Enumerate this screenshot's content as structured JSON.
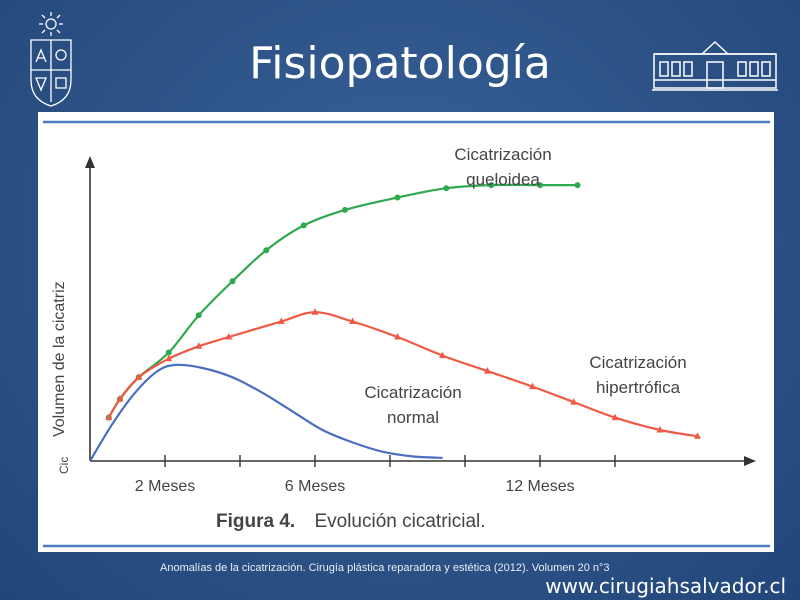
{
  "slide": {
    "title": "Fisiopatología",
    "source": "Anomalías de la cicatrización. Cirugía plástica reparadora y estética (2012). Volumen  20 n°3",
    "website": "www.cirugiahsalvador.cl"
  },
  "chart_data": {
    "type": "line",
    "caption_prefix": "Figura 4.",
    "caption_text": "Evolución cicatricial.",
    "ylabel": "Volumen de la cicatriz",
    "origin_label": "Cic",
    "x_ticks": [
      {
        "x": 2,
        "label": "2 Meses"
      },
      {
        "x": 4,
        "label": ""
      },
      {
        "x": 6,
        "label": "6 Meses"
      },
      {
        "x": 8,
        "label": ""
      },
      {
        "x": 10,
        "label": ""
      },
      {
        "x": 12,
        "label": "12 Meses"
      },
      {
        "x": 14,
        "label": ""
      }
    ],
    "xlim": [
      0,
      17.5
    ],
    "ylim": [
      0,
      100
    ],
    "series": [
      {
        "name": "Cicatrización queloidea",
        "label_lines": [
          "Cicatrización",
          "queloidea"
        ],
        "color": "#2fa84f",
        "x": [
          0.5,
          0.8,
          1.3,
          2.1,
          2.9,
          3.8,
          4.7,
          5.7,
          6.8,
          8.2,
          9.5,
          10.7,
          12.0,
          13.0
        ],
        "y": [
          14,
          20,
          27,
          35,
          47,
          58,
          68,
          76,
          81,
          85,
          88,
          89,
          89,
          89
        ]
      },
      {
        "name": "Cicatrización hipertrófica",
        "label_lines": [
          "Cicatrización",
          "hipertrófica"
        ],
        "color": "#ef5a45",
        "x": [
          0.5,
          0.8,
          1.3,
          2.1,
          2.9,
          3.7,
          5.1,
          6.0,
          7.0,
          8.2,
          9.4,
          10.6,
          11.8,
          12.9,
          14.0,
          15.2,
          16.2
        ],
        "y": [
          14,
          20,
          27,
          33,
          37,
          40,
          45,
          48,
          45,
          40,
          34,
          29,
          24,
          19,
          14,
          10,
          8
        ]
      },
      {
        "name": "Cicatrización normal",
        "label_lines": [
          "Cicatrización",
          "normal"
        ],
        "color": "#4a6fc0",
        "x": [
          0.0,
          0.6,
          1.2,
          1.8,
          2.3,
          3.0,
          3.8,
          4.6,
          5.4,
          6.2,
          7.0,
          7.8,
          8.6,
          9.4
        ],
        "y": [
          0,
          12,
          22,
          29,
          31,
          30,
          27,
          22,
          16,
          10,
          6,
          3,
          1.5,
          1
        ]
      }
    ]
  }
}
